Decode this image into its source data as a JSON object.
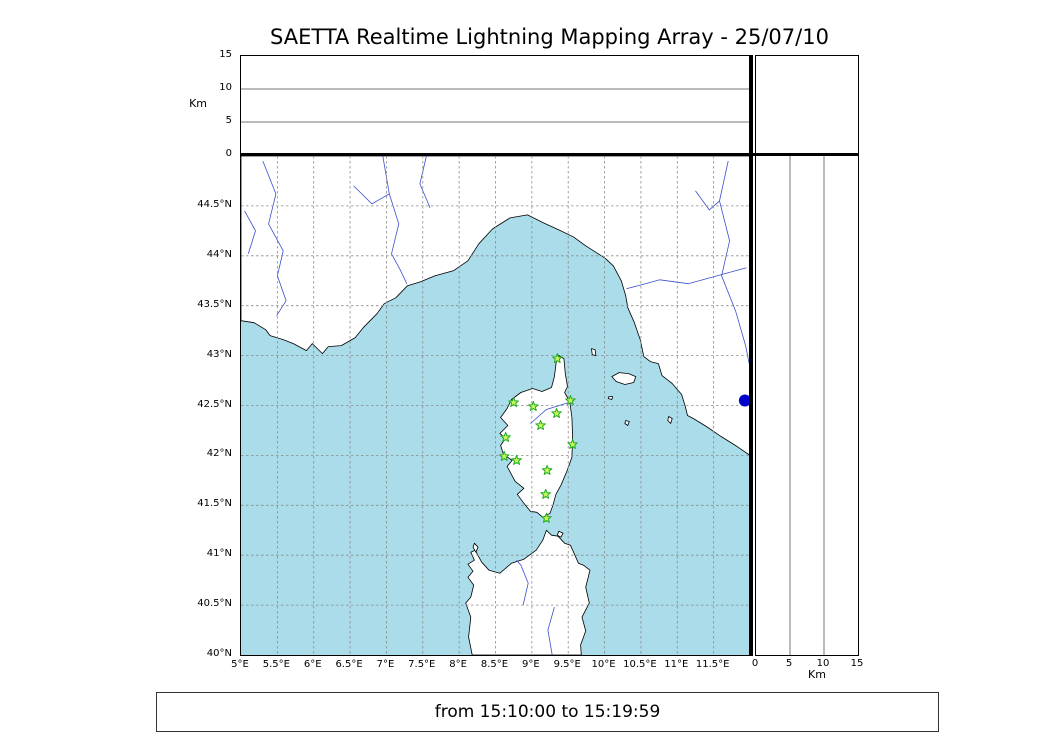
{
  "title": "SAETTA Realtime Lightning Mapping Array - 25/07/10",
  "footer": {
    "time_range": "from 15:10:00 to 15:19:59"
  },
  "colors": {
    "sea": "#aadcea",
    "land": "#ffffff",
    "coast": "#000000",
    "river": "#3a4fd0",
    "grid": "#8a8a8a",
    "panel_grid": "#777777",
    "station_fill": "#c8fa5a",
    "station_edge": "#22aa22",
    "event_dot": "#0000cc"
  },
  "chart_data": {
    "type": "scatter",
    "title": "SAETTA Realtime Lightning Mapping Array - 25/07/10",
    "description": "Lightning mapping array realtime display: altitude vs longitude panel (top), plan-view map with station markers over Corsica (center), altitude vs latitude panel (right), altitude histogram panel (top right, empty). Time window shown in footer box.",
    "panels": {
      "alt_lon": {
        "ylabel": "Km",
        "ylim": [
          0,
          15
        ],
        "yticks": [
          {
            "label": "15",
            "value": 15
          },
          {
            "label": "10",
            "value": 10
          },
          {
            "label": "5",
            "value": 5
          },
          {
            "label": "0",
            "value": 0
          }
        ],
        "gridlines_km": [
          5,
          10
        ],
        "points": []
      },
      "map": {
        "lon_range": [
          5,
          12
        ],
        "lat_range": [
          40,
          45
        ],
        "grid_step_deg": 0.5,
        "grid_style": "dashed",
        "lon_ticks": [
          {
            "label": "5°E",
            "value": 5
          },
          {
            "label": "5.5°E",
            "value": 5.5
          },
          {
            "label": "6°E",
            "value": 6
          },
          {
            "label": "6.5°E",
            "value": 6.5
          },
          {
            "label": "7°E",
            "value": 7
          },
          {
            "label": "7.5°E",
            "value": 7.5
          },
          {
            "label": "8°E",
            "value": 8
          },
          {
            "label": "8.5°E",
            "value": 8.5
          },
          {
            "label": "9°E",
            "value": 9
          },
          {
            "label": "9.5°E",
            "value": 9.5
          },
          {
            "label": "10°E",
            "value": 10
          },
          {
            "label": "10.5°E",
            "value": 10.5
          },
          {
            "label": "11°E",
            "value": 11
          },
          {
            "label": "11.5°E",
            "value": 11.5
          }
        ],
        "lat_ticks": [
          {
            "label": "44.5°N",
            "value": 44.5
          },
          {
            "label": "44°N",
            "value": 44
          },
          {
            "label": "43.5°N",
            "value": 43.5
          },
          {
            "label": "43°N",
            "value": 43
          },
          {
            "label": "42.5°N",
            "value": 42.5
          },
          {
            "label": "42°N",
            "value": 42
          },
          {
            "label": "41.5°N",
            "value": 41.5
          },
          {
            "label": "41°N",
            "value": 41
          },
          {
            "label": "40.5°N",
            "value": 40.5
          },
          {
            "label": "40°N",
            "value": 40
          }
        ]
      },
      "alt_lat": {
        "xlabel": "Km",
        "xlim": [
          0,
          15
        ],
        "xticks": [
          {
            "label": "0",
            "value": 0
          },
          {
            "label": "5",
            "value": 5
          },
          {
            "label": "10",
            "value": 10
          },
          {
            "label": "15",
            "value": 15
          }
        ],
        "gridlines_km": [
          5,
          10
        ],
        "points": []
      },
      "histogram": {
        "points": []
      }
    },
    "stations": [
      {
        "lon": 9.35,
        "lat": 42.97
      },
      {
        "lon": 8.75,
        "lat": 42.53
      },
      {
        "lon": 9.02,
        "lat": 42.49
      },
      {
        "lon": 9.53,
        "lat": 42.55
      },
      {
        "lon": 9.34,
        "lat": 42.42
      },
      {
        "lon": 9.12,
        "lat": 42.3
      },
      {
        "lon": 8.64,
        "lat": 42.18
      },
      {
        "lon": 9.56,
        "lat": 42.11
      },
      {
        "lon": 8.62,
        "lat": 41.99
      },
      {
        "lon": 8.79,
        "lat": 41.95
      },
      {
        "lon": 9.21,
        "lat": 41.85
      },
      {
        "lon": 9.19,
        "lat": 41.61
      },
      {
        "lon": 9.2,
        "lat": 41.37
      }
    ],
    "event_marker": {
      "lon": 11.93,
      "lat": 42.55
    }
  },
  "map_geometry": {
    "land": [
      {
        "name": "mainland-europe",
        "points": [
          [
            5.0,
            43.35
          ],
          [
            5.18,
            43.33
          ],
          [
            5.34,
            43.26
          ],
          [
            5.4,
            43.2
          ],
          [
            5.58,
            43.16
          ],
          [
            5.72,
            43.12
          ],
          [
            5.9,
            43.05
          ],
          [
            5.98,
            43.12
          ],
          [
            6.12,
            43.02
          ],
          [
            6.2,
            43.09
          ],
          [
            6.38,
            43.1
          ],
          [
            6.57,
            43.18
          ],
          [
            6.68,
            43.28
          ],
          [
            6.87,
            43.42
          ],
          [
            6.97,
            43.52
          ],
          [
            7.13,
            43.58
          ],
          [
            7.29,
            43.7
          ],
          [
            7.47,
            43.74
          ],
          [
            7.67,
            43.8
          ],
          [
            7.92,
            43.85
          ],
          [
            8.12,
            43.95
          ],
          [
            8.27,
            44.12
          ],
          [
            8.46,
            44.27
          ],
          [
            8.7,
            44.38
          ],
          [
            8.94,
            44.41
          ],
          [
            9.16,
            44.33
          ],
          [
            9.37,
            44.26
          ],
          [
            9.57,
            44.19
          ],
          [
            9.74,
            44.1
          ],
          [
            9.87,
            44.04
          ],
          [
            10.0,
            43.98
          ],
          [
            10.12,
            43.9
          ],
          [
            10.23,
            43.75
          ],
          [
            10.29,
            43.6
          ],
          [
            10.32,
            43.48
          ],
          [
            10.41,
            43.33
          ],
          [
            10.49,
            43.16
          ],
          [
            10.54,
            42.99
          ],
          [
            10.63,
            42.94
          ],
          [
            10.74,
            42.92
          ],
          [
            10.79,
            42.8
          ],
          [
            10.93,
            42.72
          ],
          [
            11.06,
            42.61
          ],
          [
            11.11,
            42.49
          ],
          [
            11.14,
            42.4
          ],
          [
            11.22,
            42.37
          ],
          [
            11.4,
            42.29
          ],
          [
            11.6,
            42.19
          ],
          [
            11.82,
            42.09
          ],
          [
            12.0,
            42.0
          ],
          [
            12.0,
            45.0
          ],
          [
            5.0,
            45.0
          ]
        ]
      },
      {
        "name": "corsica",
        "points": [
          [
            9.35,
            43.01
          ],
          [
            9.44,
            42.97
          ],
          [
            9.46,
            42.82
          ],
          [
            9.49,
            42.69
          ],
          [
            9.45,
            42.63
          ],
          [
            9.52,
            42.54
          ],
          [
            9.55,
            42.38
          ],
          [
            9.56,
            42.18
          ],
          [
            9.55,
            41.98
          ],
          [
            9.48,
            41.84
          ],
          [
            9.4,
            41.7
          ],
          [
            9.33,
            41.61
          ],
          [
            9.29,
            41.5
          ],
          [
            9.25,
            41.42
          ],
          [
            9.15,
            41.38
          ],
          [
            9.07,
            41.43
          ],
          [
            8.98,
            41.44
          ],
          [
            8.89,
            41.52
          ],
          [
            8.8,
            41.61
          ],
          [
            8.89,
            41.67
          ],
          [
            8.77,
            41.74
          ],
          [
            8.66,
            41.89
          ],
          [
            8.73,
            41.95
          ],
          [
            8.61,
            42.01
          ],
          [
            8.57,
            42.1
          ],
          [
            8.64,
            42.17
          ],
          [
            8.56,
            42.22
          ],
          [
            8.67,
            42.3
          ],
          [
            8.57,
            42.38
          ],
          [
            8.66,
            42.47
          ],
          [
            8.72,
            42.56
          ],
          [
            8.85,
            42.63
          ],
          [
            9.01,
            42.67
          ],
          [
            9.14,
            42.64
          ],
          [
            9.27,
            42.68
          ],
          [
            9.31,
            42.79
          ],
          [
            9.33,
            42.91
          ]
        ]
      },
      {
        "name": "sardinia",
        "points": [
          [
            8.18,
            40.0
          ],
          [
            8.13,
            40.18
          ],
          [
            8.16,
            40.38
          ],
          [
            8.09,
            40.52
          ],
          [
            8.16,
            40.58
          ],
          [
            8.2,
            40.7
          ],
          [
            8.12,
            40.78
          ],
          [
            8.19,
            40.84
          ],
          [
            8.12,
            40.91
          ],
          [
            8.21,
            40.95
          ],
          [
            8.16,
            41.03
          ],
          [
            8.22,
            41.05
          ],
          [
            8.31,
            40.93
          ],
          [
            8.41,
            40.85
          ],
          [
            8.56,
            40.82
          ],
          [
            8.72,
            40.92
          ],
          [
            8.89,
            40.96
          ],
          [
            9.06,
            41.05
          ],
          [
            9.15,
            41.15
          ],
          [
            9.2,
            41.25
          ],
          [
            9.27,
            41.2
          ],
          [
            9.36,
            41.19
          ],
          [
            9.45,
            41.12
          ],
          [
            9.53,
            41.1
          ],
          [
            9.58,
            41.02
          ],
          [
            9.64,
            40.92
          ],
          [
            9.71,
            40.9
          ],
          [
            9.8,
            40.85
          ],
          [
            9.74,
            40.68
          ],
          [
            9.79,
            40.52
          ],
          [
            9.69,
            40.38
          ],
          [
            9.74,
            40.24
          ],
          [
            9.67,
            40.1
          ],
          [
            9.68,
            40.0
          ]
        ]
      },
      {
        "name": "elba",
        "points": [
          [
            10.1,
            42.79
          ],
          [
            10.2,
            42.83
          ],
          [
            10.33,
            42.82
          ],
          [
            10.43,
            42.79
          ],
          [
            10.4,
            42.73
          ],
          [
            10.28,
            42.71
          ],
          [
            10.16,
            42.74
          ]
        ]
      },
      {
        "name": "capraia",
        "points": [
          [
            9.82,
            43.07
          ],
          [
            9.87,
            43.06
          ],
          [
            9.88,
            43.0
          ],
          [
            9.83,
            43.01
          ]
        ]
      },
      {
        "name": "pianosa",
        "points": [
          [
            10.06,
            42.59
          ],
          [
            10.11,
            42.59
          ],
          [
            10.1,
            42.56
          ],
          [
            10.05,
            42.57
          ]
        ]
      },
      {
        "name": "montecristo",
        "points": [
          [
            10.29,
            42.35
          ],
          [
            10.34,
            42.34
          ],
          [
            10.32,
            42.3
          ],
          [
            10.28,
            42.32
          ]
        ]
      },
      {
        "name": "giglio",
        "points": [
          [
            10.88,
            42.39
          ],
          [
            10.93,
            42.37
          ],
          [
            10.91,
            42.32
          ],
          [
            10.87,
            42.35
          ]
        ]
      },
      {
        "name": "asinara",
        "points": [
          [
            8.21,
            41.12
          ],
          [
            8.26,
            41.08
          ],
          [
            8.23,
            41.03
          ],
          [
            8.19,
            41.08
          ]
        ]
      },
      {
        "name": "maddalena",
        "points": [
          [
            9.37,
            41.24
          ],
          [
            9.43,
            41.22
          ],
          [
            9.4,
            41.18
          ],
          [
            9.35,
            41.2
          ]
        ]
      }
    ],
    "rivers": [
      [
        [
          5.3,
          44.95
        ],
        [
          5.48,
          44.62
        ],
        [
          5.38,
          44.32
        ],
        [
          5.58,
          44.05
        ],
        [
          5.5,
          43.8
        ],
        [
          5.62,
          43.55
        ],
        [
          5.49,
          43.4
        ]
      ],
      [
        [
          5.05,
          44.45
        ],
        [
          5.2,
          44.25
        ],
        [
          5.1,
          44.02
        ]
      ],
      [
        [
          6.95,
          45.0
        ],
        [
          7.04,
          44.62
        ],
        [
          7.17,
          44.32
        ],
        [
          7.07,
          44.02
        ],
        [
          7.19,
          43.86
        ],
        [
          7.28,
          43.72
        ]
      ],
      [
        [
          6.55,
          44.7
        ],
        [
          6.8,
          44.52
        ],
        [
          7.04,
          44.62
        ]
      ],
      [
        [
          7.55,
          45.0
        ],
        [
          7.46,
          44.72
        ],
        [
          7.6,
          44.48
        ]
      ],
      [
        [
          11.95,
          43.88
        ],
        [
          11.55,
          43.8
        ],
        [
          11.15,
          43.72
        ],
        [
          10.76,
          43.76
        ],
        [
          10.46,
          43.7
        ],
        [
          10.3,
          43.67
        ]
      ],
      [
        [
          11.7,
          44.95
        ],
        [
          11.58,
          44.55
        ],
        [
          11.72,
          44.15
        ],
        [
          11.61,
          43.8
        ],
        [
          11.8,
          43.45
        ],
        [
          11.94,
          43.1
        ],
        [
          12.0,
          42.88
        ]
      ],
      [
        [
          11.25,
          44.65
        ],
        [
          11.44,
          44.46
        ],
        [
          11.58,
          44.55
        ]
      ],
      [
        [
          8.88,
          40.5
        ],
        [
          8.95,
          40.72
        ],
        [
          8.85,
          40.9
        ],
        [
          8.79,
          40.95
        ]
      ],
      [
        [
          9.28,
          40.0
        ],
        [
          9.22,
          40.25
        ],
        [
          9.31,
          40.48
        ]
      ],
      [
        [
          8.98,
          42.32
        ],
        [
          9.2,
          42.46
        ],
        [
          9.51,
          42.53
        ]
      ]
    ]
  }
}
